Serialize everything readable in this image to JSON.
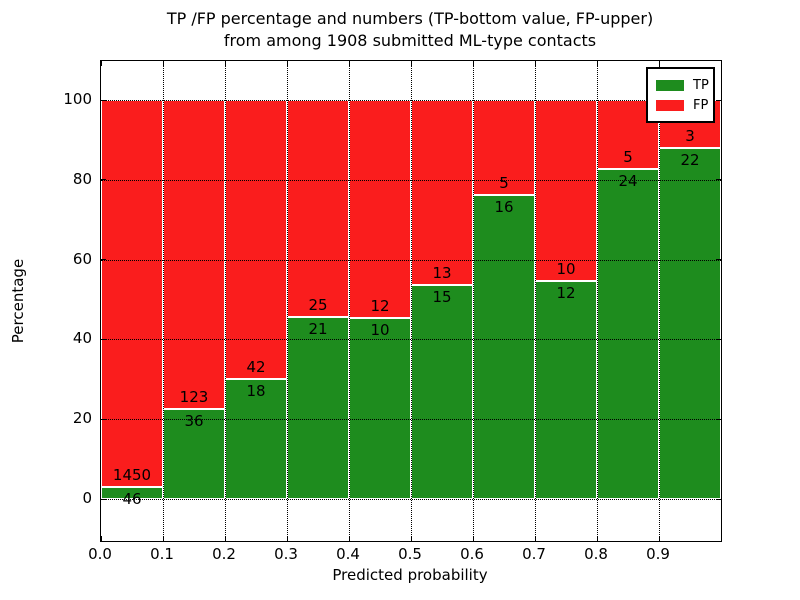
{
  "title": {
    "line1": "TP /FP percentage and numbers (TP-bottom value, FP-upper)",
    "line2": "from among 1908 submitted ML-type contacts"
  },
  "axes": {
    "xlabel": "Predicted probability",
    "ylabel": "Percentage",
    "x_tick_labels": [
      "0.0",
      "0.1",
      "0.2",
      "0.3",
      "0.4",
      "0.5",
      "0.6",
      "0.7",
      "0.8",
      "0.9"
    ],
    "y_tick_labels": [
      "0",
      "20",
      "40",
      "60",
      "80",
      "100"
    ],
    "y_tick_values": [
      0,
      20,
      40,
      60,
      80,
      100
    ]
  },
  "legend": {
    "items": [
      {
        "label": "TP",
        "color": "#1e8c1e"
      },
      {
        "label": "FP",
        "color": "#fa1d1d"
      }
    ],
    "position": "upper right"
  },
  "chart_data": {
    "type": "bar",
    "stacked": true,
    "normalized": "each bin scaled to 100%",
    "title": "TP /FP percentage and numbers (TP-bottom value, FP-upper) from among 1908 submitted ML-type contacts",
    "xlabel": "Predicted probability",
    "ylabel": "Percentage",
    "bin_edges": [
      0.0,
      0.1,
      0.2,
      0.3,
      0.4,
      0.5,
      0.6,
      0.7,
      0.8,
      0.9,
      1.0
    ],
    "categories": [
      "0.0-0.1",
      "0.1-0.2",
      "0.2-0.3",
      "0.3-0.4",
      "0.4-0.5",
      "0.5-0.6",
      "0.6-0.7",
      "0.7-0.8",
      "0.8-0.9",
      "0.9-1.0"
    ],
    "series": [
      {
        "name": "TP",
        "color": "#1e8c1e",
        "counts": [
          46,
          36,
          18,
          21,
          10,
          15,
          16,
          12,
          24,
          22
        ]
      },
      {
        "name": "FP",
        "color": "#fa1d1d",
        "counts": [
          1450,
          123,
          42,
          25,
          12,
          13,
          5,
          10,
          5,
          3
        ]
      }
    ],
    "tp_percent": [
      3.1,
      22.6,
      30.0,
      45.7,
      45.5,
      53.6,
      76.2,
      54.5,
      82.8,
      88.0
    ],
    "total_contacts": 1908,
    "ylim": [
      -10.5,
      110
    ],
    "xlim": [
      0.0,
      1.0
    ],
    "grid": "dotted black, on top of bars",
    "legend_position": "upper right"
  }
}
